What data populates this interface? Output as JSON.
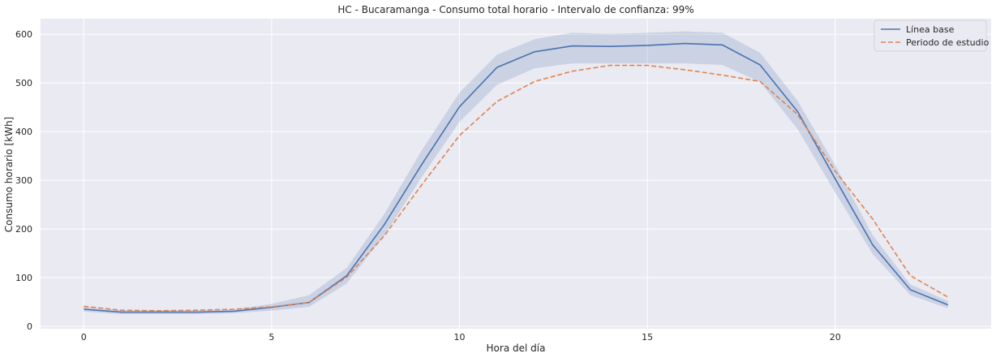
{
  "chart_data": {
    "type": "line",
    "title": "HC - Bucaramanga - Consumo total horario - Intervalo de confianza: 99%",
    "xlabel": "Hora del día",
    "ylabel": "Consumo horario [kWh]",
    "xlim": [
      -1.15,
      24.15
    ],
    "ylim": [
      -5,
      632
    ],
    "xticks": [
      0,
      5,
      10,
      15,
      20
    ],
    "yticks": [
      0,
      100,
      200,
      300,
      400,
      500,
      600
    ],
    "grid": true,
    "legend_position": "top-right",
    "x": [
      0,
      1,
      2,
      3,
      4,
      5,
      6,
      7,
      8,
      9,
      10,
      11,
      12,
      13,
      14,
      15,
      16,
      17,
      18,
      19,
      20,
      21,
      22,
      23
    ],
    "series": [
      {
        "name": "Línea base",
        "style": "solid",
        "color": "#4c72b0",
        "values": [
          35,
          29,
          29,
          29,
          31,
          39,
          49,
          104,
          209,
          333,
          451,
          532,
          564,
          576,
          575,
          577,
          581,
          578,
          537,
          441,
          303,
          167,
          75,
          44
        ],
        "ci_lower": [
          30,
          25,
          25,
          25,
          27,
          32,
          40,
          88,
          187,
          307,
          420,
          496,
          530,
          540,
          540,
          540,
          540,
          537,
          502,
          405,
          275,
          148,
          64,
          37
        ],
        "ci_upper": [
          40,
          33,
          33,
          33,
          35,
          46,
          64,
          120,
          231,
          362,
          480,
          558,
          590,
          603,
          601,
          603,
          606,
          603,
          562,
          463,
          331,
          187,
          86,
          52
        ]
      },
      {
        "name": "Periodo de estudio",
        "style": "dashed",
        "color": "#dd8452",
        "values": [
          41,
          33,
          32,
          33,
          35,
          40,
          49,
          101,
          186,
          291,
          392,
          462,
          503,
          524,
          536,
          536,
          527,
          516,
          503,
          435,
          319,
          220,
          104,
          60
        ]
      }
    ]
  },
  "colors": {
    "plot_background": "#eaeaf2",
    "grid": "#ffffff",
    "ci_fill": "#4c72b0"
  }
}
